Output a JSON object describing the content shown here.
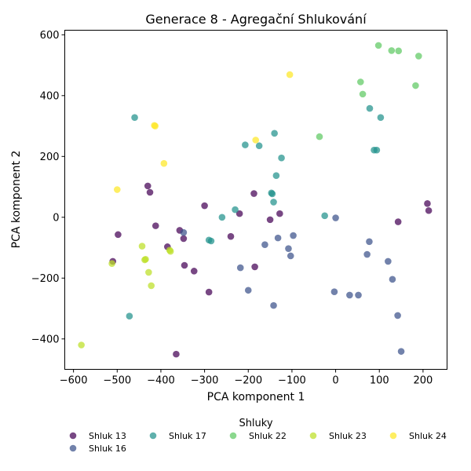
{
  "chart_data": {
    "type": "scatter",
    "title": "Generace 8 - Agregační Shlukování",
    "xlabel": "PCA komponent 1",
    "ylabel": "PCA komponent 2",
    "xlim": [
      -620,
      255
    ],
    "ylim": [
      -500,
      615
    ],
    "xticks": [
      -600,
      -500,
      -400,
      -300,
      -200,
      -100,
      0,
      100,
      200
    ],
    "yticks": [
      -400,
      -200,
      0,
      200,
      400,
      600
    ],
    "grid": false,
    "legend": {
      "title": "Shluky",
      "placement": "bottom-center"
    },
    "series": [
      {
        "name": "Shluk 13",
        "color": "#440154",
        "points": [
          [
            -430,
            103
          ],
          [
            -425,
            82
          ],
          [
            -412,
            -28
          ],
          [
            -498,
            -57
          ],
          [
            -510,
            -145
          ],
          [
            -385,
            -97
          ],
          [
            -357,
            -43
          ],
          [
            -348,
            -70
          ],
          [
            -346,
            -158
          ],
          [
            -324,
            -177
          ],
          [
            -365,
            -450
          ],
          [
            -300,
            38
          ],
          [
            -290,
            -246
          ],
          [
            -240,
            -63
          ],
          [
            -220,
            12
          ],
          [
            -187,
            78
          ],
          [
            -185,
            -163
          ],
          [
            -150,
            -8
          ],
          [
            -128,
            12
          ],
          [
            143,
            -15
          ],
          [
            210,
            45
          ],
          [
            213,
            22
          ]
        ]
      },
      {
        "name": "Shluk 16",
        "color": "#3b528b",
        "points": [
          [
            -348,
            -50
          ],
          [
            -218,
            -166
          ],
          [
            -200,
            -240
          ],
          [
            -162,
            -90
          ],
          [
            -142,
            -290
          ],
          [
            -132,
            -68
          ],
          [
            -108,
            -103
          ],
          [
            -103,
            -127
          ],
          [
            -97,
            -60
          ],
          [
            -3,
            -245
          ],
          [
            0,
            -2
          ],
          [
            32,
            -256
          ],
          [
            52,
            -256
          ],
          [
            72,
            -122
          ],
          [
            77,
            -80
          ],
          [
            120,
            -145
          ],
          [
            130,
            -204
          ],
          [
            142,
            -323
          ],
          [
            150,
            -441
          ]
        ]
      },
      {
        "name": "Shluk 17",
        "color": "#21918c",
        "points": [
          [
            -460,
            328
          ],
          [
            -472,
            -325
          ],
          [
            -290,
            -75
          ],
          [
            -285,
            -78
          ],
          [
            -260,
            0
          ],
          [
            -230,
            25
          ],
          [
            -207,
            238
          ],
          [
            -175,
            235
          ],
          [
            -147,
            80
          ],
          [
            -145,
            77
          ],
          [
            -142,
            50
          ],
          [
            -140,
            276
          ],
          [
            -136,
            137
          ],
          [
            -124,
            195
          ],
          [
            -25,
            5
          ],
          [
            78,
            358
          ],
          [
            88,
            221
          ],
          [
            94,
            221
          ],
          [
            103,
            328
          ]
        ]
      },
      {
        "name": "Shluk 22",
        "color": "#5ec962",
        "points": [
          [
            -37,
            265
          ],
          [
            57,
            445
          ],
          [
            62,
            405
          ],
          [
            98,
            565
          ],
          [
            128,
            548
          ],
          [
            144,
            547
          ],
          [
            183,
            433
          ],
          [
            190,
            530
          ]
        ]
      },
      {
        "name": "Shluk 23",
        "color": "#bddf26",
        "points": [
          [
            -582,
            -420
          ],
          [
            -512,
            -152
          ],
          [
            -443,
            -95
          ],
          [
            -437,
            -140
          ],
          [
            -435,
            -138
          ],
          [
            -428,
            -181
          ],
          [
            -422,
            -225
          ],
          [
            -380,
            -108
          ],
          [
            -378,
            -112
          ]
        ]
      },
      {
        "name": "Shluk 24",
        "color": "#fde725",
        "points": [
          [
            -500,
            91
          ],
          [
            -415,
            302
          ],
          [
            -413,
            300
          ],
          [
            -393,
            177
          ],
          [
            -183,
            254
          ],
          [
            -105,
            469
          ]
        ]
      }
    ]
  }
}
